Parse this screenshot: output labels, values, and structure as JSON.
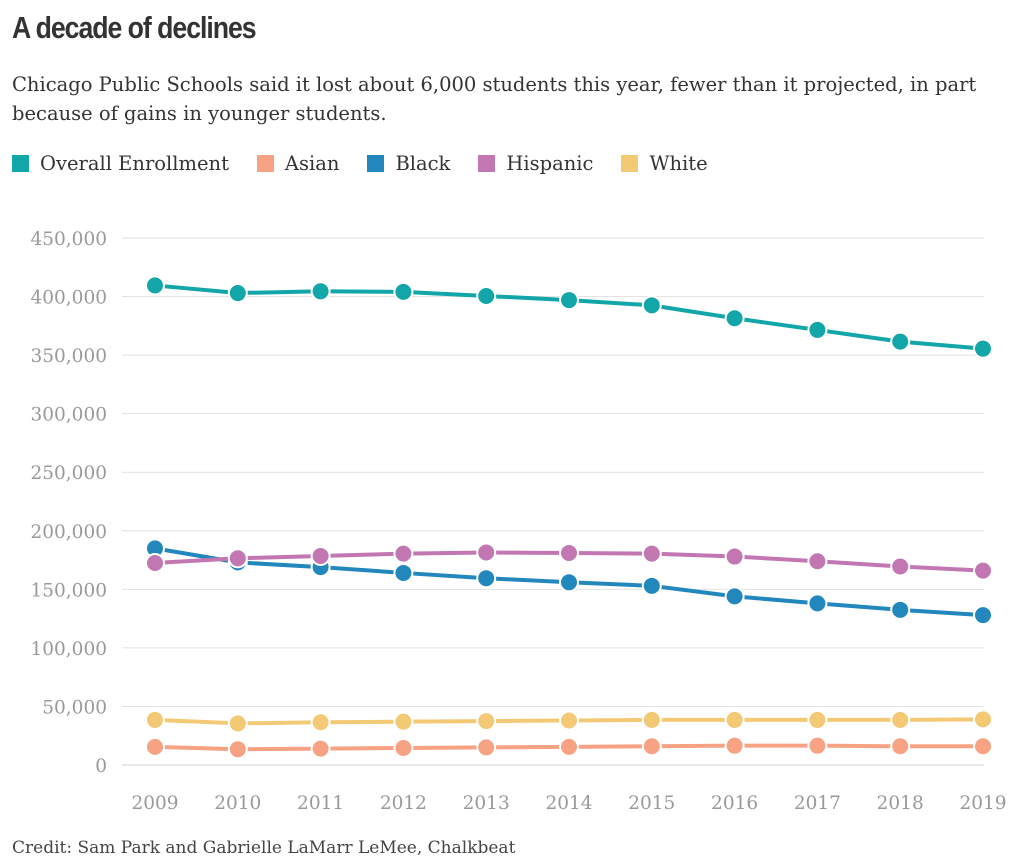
{
  "title": "A decade of declines",
  "subtitle": "Chicago Public Schools said it lost about 6,000 students this year, fewer than it projected, in part because of gains in younger students.",
  "credit": "Credit: Sam Park and Gabrielle LaMarr LeMee, Chalkbeat",
  "chart_data": {
    "type": "line",
    "title": "A decade of declines",
    "xlabel": "",
    "ylabel": "",
    "x": [
      "2009",
      "2010",
      "2011",
      "2012",
      "2013",
      "2014",
      "2015",
      "2016",
      "2017",
      "2018",
      "2019"
    ],
    "ylim": [
      0,
      450000
    ],
    "yticks": [
      0,
      50000,
      100000,
      150000,
      200000,
      250000,
      300000,
      350000,
      400000,
      450000
    ],
    "ytick_labels": [
      "0",
      "50,000",
      "100,000",
      "150,000",
      "200,000",
      "250,000",
      "300,000",
      "350,000",
      "400,000",
      "450,000"
    ],
    "grid": true,
    "legend_position": "top-left",
    "series": [
      {
        "name": "Overall Enrollment",
        "color": "#12a6a8",
        "values": [
          409500,
          403000,
          404500,
          404000,
          400500,
          397000,
          392500,
          381500,
          371500,
          361500,
          355500
        ]
      },
      {
        "name": "Asian",
        "color": "#f7a283",
        "values": [
          15500,
          13500,
          14000,
          14500,
          15000,
          15500,
          16000,
          16500,
          16500,
          16000,
          16000
        ]
      },
      {
        "name": "Black",
        "color": "#2187bd",
        "values": [
          185000,
          173000,
          169000,
          164000,
          159500,
          156000,
          153000,
          144000,
          138000,
          132500,
          128000
        ]
      },
      {
        "name": "Hispanic",
        "color": "#c277b3",
        "values": [
          172500,
          176500,
          178500,
          180500,
          181500,
          181000,
          180500,
          178000,
          174000,
          169500,
          166000
        ]
      },
      {
        "name": "White",
        "color": "#f3c976",
        "values": [
          38500,
          35500,
          36500,
          37000,
          37500,
          38000,
          38500,
          38500,
          38500,
          38500,
          39000
        ]
      }
    ]
  }
}
